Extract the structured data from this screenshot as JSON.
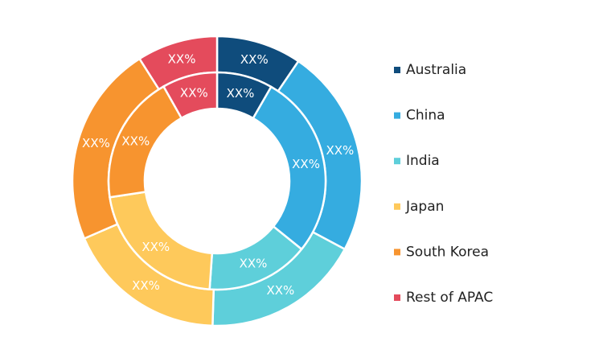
{
  "chart_data": {
    "type": "donut",
    "categories": [
      "Australia",
      "China",
      "India",
      "Japan",
      "South Korea",
      "Rest of APAC"
    ],
    "colors": [
      "#0f4c7c",
      "#35ace0",
      "#5ecfda",
      "#fec95b",
      "#f7942f",
      "#e44b5c"
    ],
    "series": [
      {
        "values": [
          9.5,
          23.3,
          17.7,
          18,
          22.5,
          9
        ],
        "value_labels": [
          "XX%",
          "XX%",
          "XX%",
          "XX%",
          "XX%",
          "XX%"
        ]
      },
      {
        "values": [
          8.3,
          27.5,
          15.3,
          21.5,
          19.2,
          8.2
        ],
        "value_labels": [
          "XX%",
          "XX%",
          "XX%",
          "XX%",
          "XX%",
          "XX%"
        ]
      }
    ]
  }
}
